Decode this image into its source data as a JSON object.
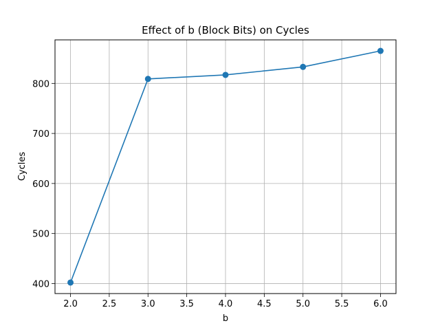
{
  "chart_data": {
    "type": "line",
    "title": "Effect of b (Block Bits) on Cycles",
    "xlabel": "b",
    "ylabel": "Cycles",
    "x": [
      2,
      3,
      4,
      5,
      6
    ],
    "series": [
      {
        "values": [
          402,
          809,
          817,
          833,
          865
        ],
        "color": "#1f77b4"
      }
    ],
    "xlim": [
      1.8,
      6.2
    ],
    "ylim": [
      380,
      887
    ],
    "xticks": [
      "2.0",
      "2.5",
      "3.0",
      "3.5",
      "4.0",
      "4.5",
      "5.0",
      "5.5",
      "6.0"
    ],
    "yticks": [
      "400",
      "500",
      "600",
      "700",
      "800"
    ],
    "grid": true,
    "marker": "circle"
  }
}
